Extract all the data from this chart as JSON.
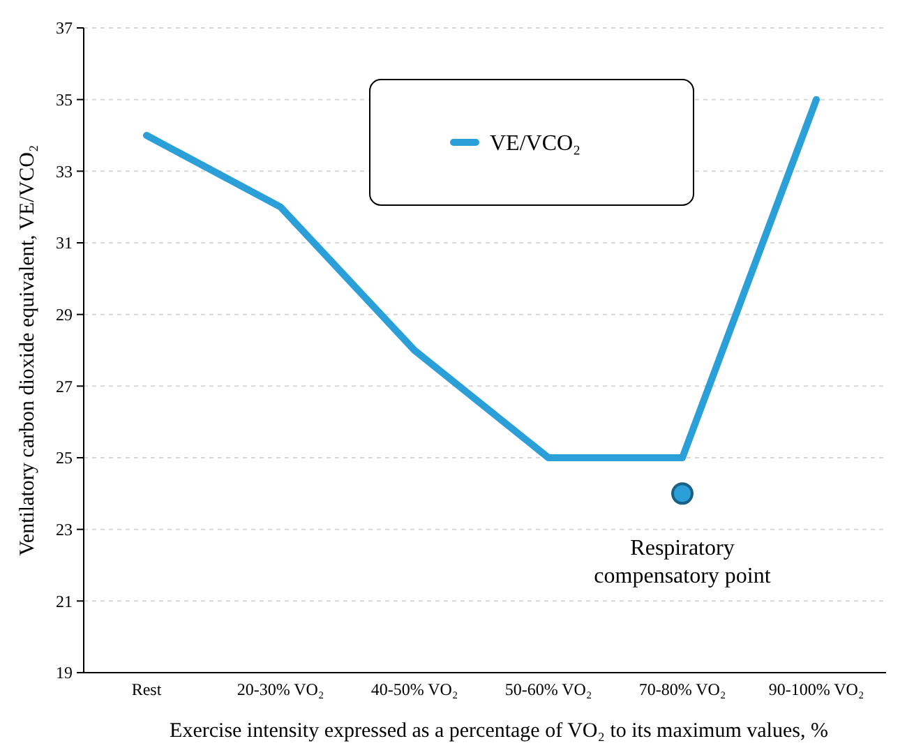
{
  "chart_data": {
    "type": "line",
    "xlabel": "Exercise intensity expressed as a percentage of VO₂ to its maximum values, %",
    "ylabel": "Ventilatory carbon dioxide equivalent, VE/VCO₂",
    "categories": [
      "Rest",
      "20-30% VO₂",
      "40-50% VO₂",
      "50-60% VO₂",
      "70-80% VO₂",
      "90-100% VO₂"
    ],
    "series": [
      {
        "name": "VE/VCO₂",
        "color": "#2a9fd8",
        "values": [
          34,
          32,
          28,
          25,
          25,
          35
        ]
      },
      {
        "type": "scatter",
        "color": "#2a9fd8",
        "marker": "circle",
        "x": [
          "70-80% VO₂"
        ],
        "values": [
          24
        ]
      }
    ],
    "annotations": [
      {
        "text": "Respiratory compensatory point",
        "x": "70-80% VO₂",
        "y": 24
      }
    ],
    "ylim": [
      19,
      37
    ],
    "yticks": [
      19,
      21,
      23,
      25,
      27,
      29,
      31,
      33,
      35,
      37
    ],
    "grid": "y",
    "legend": "top",
    "line_style": "solid"
  }
}
